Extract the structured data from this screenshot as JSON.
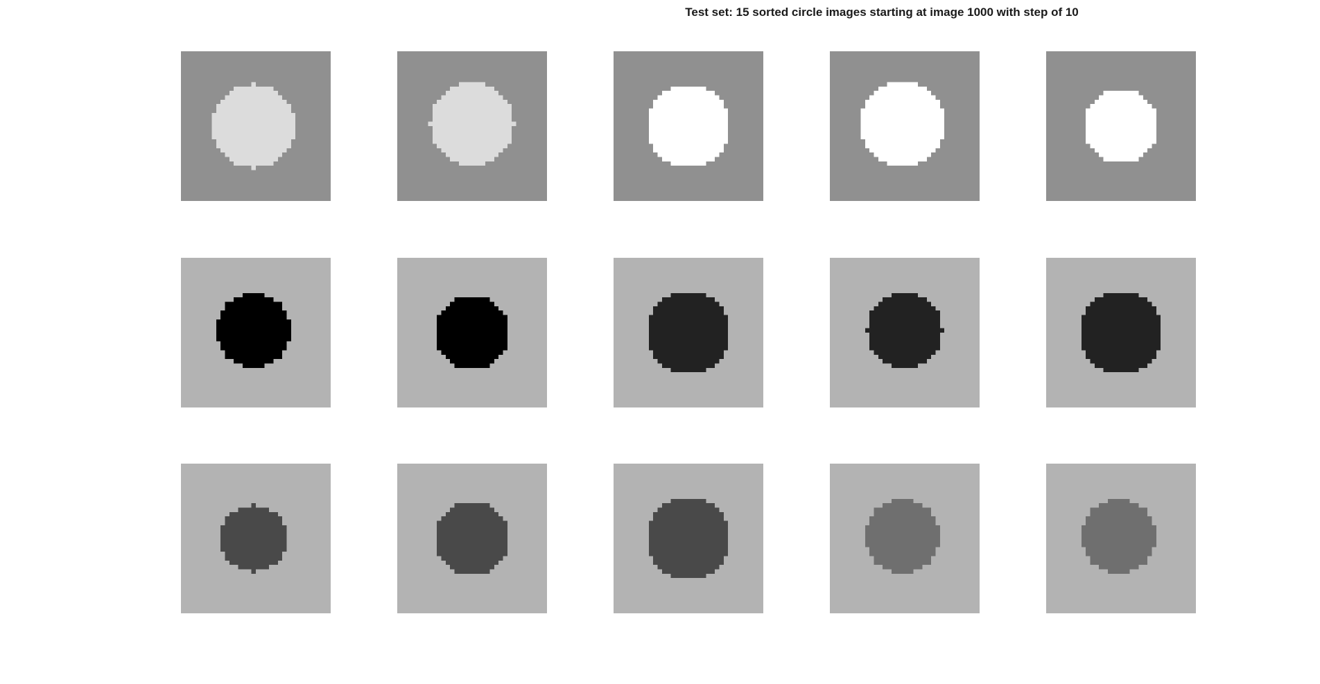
{
  "figure": {
    "title": "Test set: 15 sorted circle images starting at image 1000 with step of 10"
  },
  "images": [
    {
      "background": "#909090",
      "circle": "#dcdcdc",
      "radius_px": 9.5,
      "dx": -0.5,
      "dy": 0
    },
    {
      "background": "#909090",
      "circle": "#dcdcdc",
      "radius_px": 9.5,
      "dx": 0,
      "dy": -0.5
    },
    {
      "background": "#909090",
      "circle": "#ffffff",
      "radius_px": 9.5,
      "dx": 0,
      "dy": 0
    },
    {
      "background": "#909090",
      "circle": "#ffffff",
      "radius_px": 9.5,
      "dx": -0.5,
      "dy": -0.5
    },
    {
      "background": "#909090",
      "circle": "#ffffff",
      "radius_px": 8.5,
      "dx": 0,
      "dy": 0
    },
    {
      "background": "#b3b3b3",
      "circle": "#000000",
      "radius_px": 8.5,
      "dx": -0.5,
      "dy": -0.5
    },
    {
      "background": "#b3b3b3",
      "circle": "#000000",
      "radius_px": 8.5,
      "dx": 0,
      "dy": 0
    },
    {
      "background": "#b3b3b3",
      "circle": "#222222",
      "radius_px": 9.5,
      "dx": 0,
      "dy": 0
    },
    {
      "background": "#b3b3b3",
      "circle": "#222222",
      "radius_px": 8.5,
      "dx": 0,
      "dy": -0.5
    },
    {
      "background": "#b3b3b3",
      "circle": "#222222",
      "radius_px": 9.5,
      "dx": 0,
      "dy": 0
    },
    {
      "background": "#b3b3b3",
      "circle": "#494949",
      "radius_px": 7.5,
      "dx": -0.5,
      "dy": 0
    },
    {
      "background": "#b3b3b3",
      "circle": "#494949",
      "radius_px": 8.5,
      "dx": 0,
      "dy": 0
    },
    {
      "background": "#b3b3b3",
      "circle": "#494949",
      "radius_px": 9.5,
      "dx": 0,
      "dy": 0
    },
    {
      "background": "#b3b3b3",
      "circle": "#6f6f6f",
      "radius_px": 8.5,
      "dx": -0.5,
      "dy": -0.5
    },
    {
      "background": "#b3b3b3",
      "circle": "#6f6f6f",
      "radius_px": 8.5,
      "dx": -0.5,
      "dy": -0.5
    }
  ]
}
